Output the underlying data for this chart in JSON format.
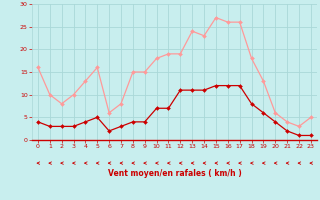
{
  "hours": [
    0,
    1,
    2,
    3,
    4,
    5,
    6,
    7,
    8,
    9,
    10,
    11,
    12,
    13,
    14,
    15,
    16,
    17,
    18,
    19,
    20,
    21,
    22,
    23
  ],
  "wind_avg": [
    4,
    3,
    3,
    3,
    4,
    5,
    2,
    3,
    4,
    4,
    7,
    7,
    11,
    11,
    11,
    12,
    12,
    12,
    8,
    6,
    4,
    2,
    1,
    1
  ],
  "wind_gust": [
    16,
    10,
    8,
    10,
    13,
    16,
    6,
    8,
    15,
    15,
    18,
    19,
    19,
    24,
    23,
    27,
    26,
    26,
    18,
    13,
    6,
    4,
    3,
    5
  ],
  "bg_color": "#c8eeee",
  "grid_color": "#aad8d8",
  "avg_color": "#cc0000",
  "gust_color": "#ff9999",
  "tick_color": "#cc0000",
  "xlabel": "Vent moyen/en rafales ( km/h )",
  "ylim": [
    0,
    30
  ],
  "yticks": [
    0,
    5,
    10,
    15,
    20,
    25,
    30
  ],
  "arrow_color": "#cc0000",
  "figsize": [
    3.2,
    2.0
  ],
  "dpi": 100
}
